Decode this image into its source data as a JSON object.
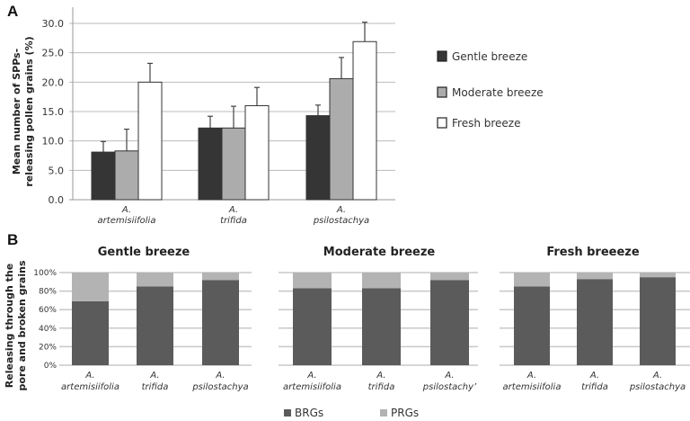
{
  "chart_data": [
    {
      "panel_label": "A",
      "type": "bar",
      "ylabel_line1": "Mean number of SPPs-",
      "ylabel_line2": "releasing pollen grains (%)",
      "xlabel": "",
      "ylim": [
        0,
        30
      ],
      "yticks": [
        "0.0",
        "5.0",
        "10.0",
        "15.0",
        "20.0",
        "25.0",
        "30.0"
      ],
      "ytick_values": [
        0,
        5,
        10,
        15,
        20,
        25,
        30
      ],
      "grid": true,
      "legend_position": "right",
      "categories": [
        {
          "genus": "A.",
          "species": "artemisiifolia"
        },
        {
          "genus": "A.",
          "species": "trifida"
        },
        {
          "genus": "A.",
          "species": "psilostachya"
        }
      ],
      "series": [
        {
          "name": "Gentle breeze",
          "color": "#353535",
          "values": [
            8.1,
            12.2,
            14.3
          ],
          "errors": [
            1.8,
            2.0,
            1.8
          ]
        },
        {
          "name": "Moderate breeze",
          "color": "#acacac",
          "values": [
            8.3,
            12.2,
            20.6
          ],
          "errors": [
            3.7,
            3.7,
            3.6
          ]
        },
        {
          "name": "Fresh breeze",
          "color": "#ffffff",
          "values": [
            20.0,
            16.0,
            26.9
          ],
          "errors": [
            3.2,
            3.1,
            3.3
          ]
        }
      ]
    },
    {
      "panel_label": "B",
      "type": "bar",
      "stacked": true,
      "ylabel_line1": "Releasing through the",
      "ylabel_line2": "pore and broken grains",
      "ylim": [
        0,
        100
      ],
      "yticks": [
        "0%",
        "20%",
        "40%",
        "60%",
        "80%",
        "100%"
      ],
      "ytick_values": [
        0,
        20,
        40,
        60,
        80,
        100
      ],
      "grid": true,
      "legend_position": "bottom",
      "legend": [
        {
          "name": "BRGs",
          "color": "#5b5b5b"
        },
        {
          "name": "PRGs",
          "color": "#b3b3b3"
        }
      ],
      "subplots": [
        {
          "title": "Gentle breeze",
          "categories": [
            {
              "genus": "A.",
              "species": "artemisiifolia"
            },
            {
              "genus": "A.",
              "species": "trifida"
            },
            {
              "genus": "A.",
              "species": "psilostachya"
            }
          ],
          "series": [
            {
              "name": "BRGs",
              "values": [
                69,
                85,
                92
              ]
            },
            {
              "name": "PRGs",
              "values": [
                31,
                15,
                8
              ]
            }
          ]
        },
        {
          "title": "Moderate breeze",
          "categories": [
            {
              "genus": "A.",
              "species": "artemisiifolia"
            },
            {
              "genus": "A.",
              "species": "trifida"
            },
            {
              "genus": "A.",
              "species": "psilostachy’"
            }
          ],
          "series": [
            {
              "name": "BRGs",
              "values": [
                83,
                83,
                92
              ]
            },
            {
              "name": "PRGs",
              "values": [
                17,
                17,
                8
              ]
            }
          ]
        },
        {
          "title": "Fresh breeeze",
          "categories": [
            {
              "genus": "A.",
              "species": "artemisiifolia"
            },
            {
              "genus": "A.",
              "species": "trifida"
            },
            {
              "genus": "A.",
              "species": "psilostachya"
            }
          ],
          "series": [
            {
              "name": "BRGs",
              "values": [
                85,
                93,
                95
              ]
            },
            {
              "name": "PRGs",
              "values": [
                15,
                7,
                5
              ]
            }
          ]
        }
      ]
    }
  ]
}
